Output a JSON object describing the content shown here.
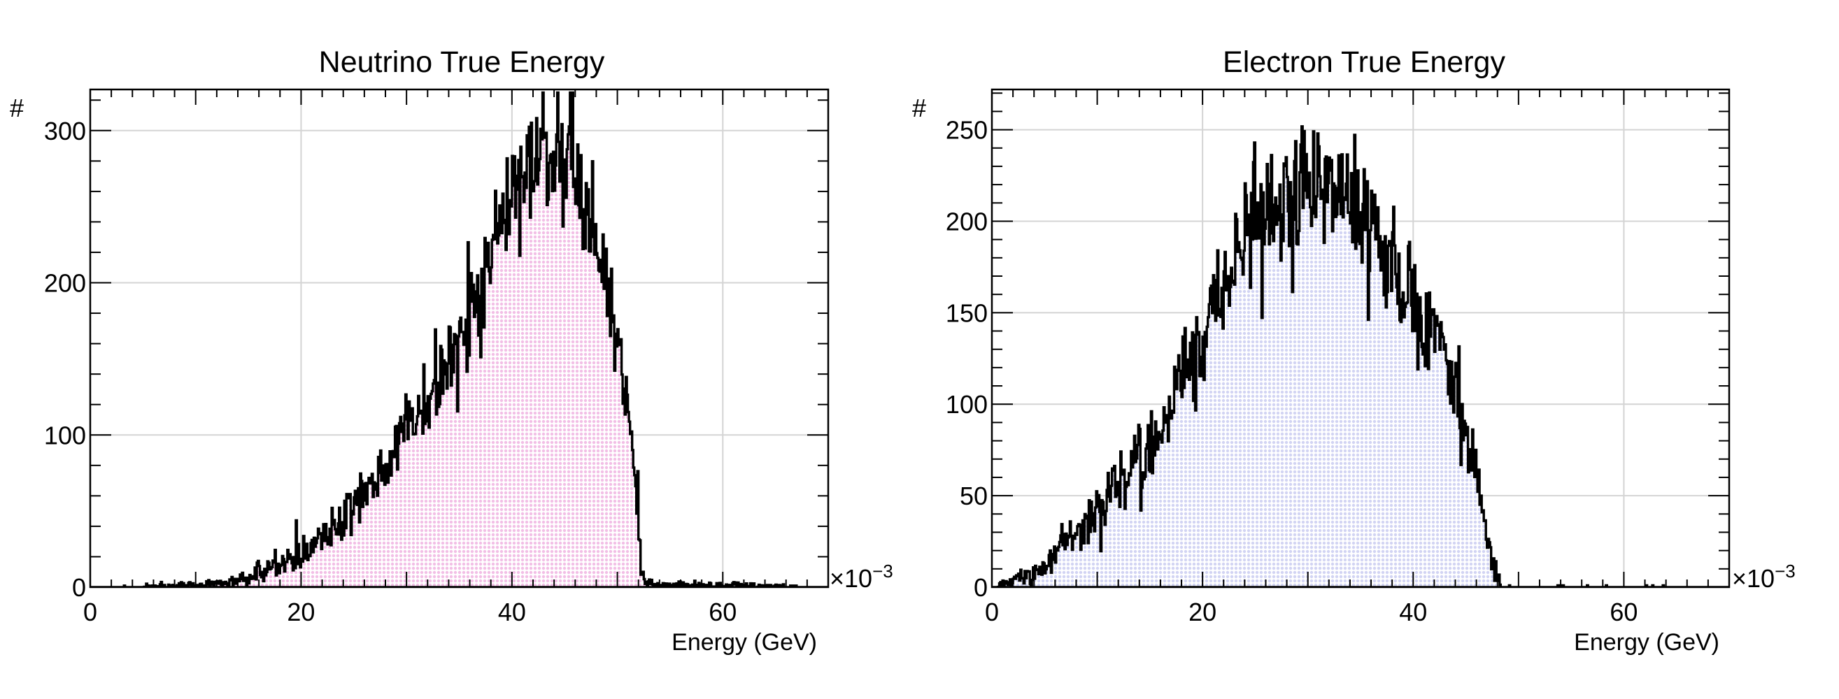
{
  "chart_data": [
    {
      "type": "bar",
      "histogram": true,
      "title": "Neutrino True Energy",
      "xlabel": "Energy (GeV)",
      "ylabel": "#",
      "x_exponent_label": "×10",
      "x_exponent": "−3",
      "xlim": [
        0,
        70
      ],
      "ylim": [
        0,
        327
      ],
      "x_ticks": [
        "0",
        "20",
        "40",
        "60"
      ],
      "y_ticks": [
        "0",
        "100",
        "200",
        "300"
      ],
      "x_tick_values": [
        0,
        20,
        40,
        60
      ],
      "y_tick_values": [
        0,
        100,
        200,
        300
      ],
      "grid": true,
      "fill_color": "#f2bfe6",
      "line_color": "#000000",
      "bin_width": 0.1,
      "approx_peak": {
        "x": 42.5,
        "y": 312
      },
      "cutoff_x": 52.3,
      "shape_points": [
        [
          0,
          0
        ],
        [
          10,
          1
        ],
        [
          14,
          4
        ],
        [
          16,
          9
        ],
        [
          18,
          16
        ],
        [
          20,
          22
        ],
        [
          22,
          33
        ],
        [
          24,
          48
        ],
        [
          26,
          63
        ],
        [
          28,
          80
        ],
        [
          30,
          100
        ],
        [
          32,
          122
        ],
        [
          34,
          145
        ],
        [
          36,
          178
        ],
        [
          38,
          215
        ],
        [
          40,
          252
        ],
        [
          42,
          278
        ],
        [
          44,
          285
        ],
        [
          46,
          272
        ],
        [
          48,
          225
        ],
        [
          50,
          165
        ],
        [
          51,
          118
        ],
        [
          52,
          45
        ],
        [
          52.3,
          8
        ],
        [
          53,
          2
        ],
        [
          70,
          0
        ]
      ]
    },
    {
      "type": "bar",
      "histogram": true,
      "title": "Electron True Energy",
      "xlabel": "Energy (GeV)",
      "ylabel": "#",
      "x_exponent_label": "×10",
      "x_exponent": "−3",
      "xlim": [
        0,
        70
      ],
      "ylim": [
        0,
        272
      ],
      "x_ticks": [
        "0",
        "20",
        "40",
        "60"
      ],
      "y_ticks": [
        "0",
        "50",
        "100",
        "150",
        "200",
        "250"
      ],
      "x_tick_values": [
        0,
        20,
        40,
        60
      ],
      "y_tick_values": [
        0,
        50,
        100,
        150,
        200,
        250
      ],
      "grid": true,
      "fill_color": "#d2d4f3",
      "line_color": "#000000",
      "bin_width": 0.1,
      "approx_peak": {
        "x": 33,
        "y": 262
      },
      "cutoff_x": 48.3,
      "shape_points": [
        [
          0,
          0
        ],
        [
          2,
          3
        ],
        [
          4,
          8
        ],
        [
          6,
          17
        ],
        [
          8,
          28
        ],
        [
          10,
          42
        ],
        [
          12,
          58
        ],
        [
          14,
          72
        ],
        [
          16,
          88
        ],
        [
          18,
          110
        ],
        [
          20,
          140
        ],
        [
          22,
          168
        ],
        [
          24,
          190
        ],
        [
          26,
          206
        ],
        [
          28,
          216
        ],
        [
          30,
          222
        ],
        [
          32,
          219
        ],
        [
          34,
          210
        ],
        [
          36,
          195
        ],
        [
          38,
          178
        ],
        [
          40,
          160
        ],
        [
          42,
          138
        ],
        [
          44,
          110
        ],
        [
          46,
          60
        ],
        [
          47,
          28
        ],
        [
          48,
          8
        ],
        [
          48.3,
          0
        ],
        [
          70,
          0
        ]
      ]
    }
  ]
}
